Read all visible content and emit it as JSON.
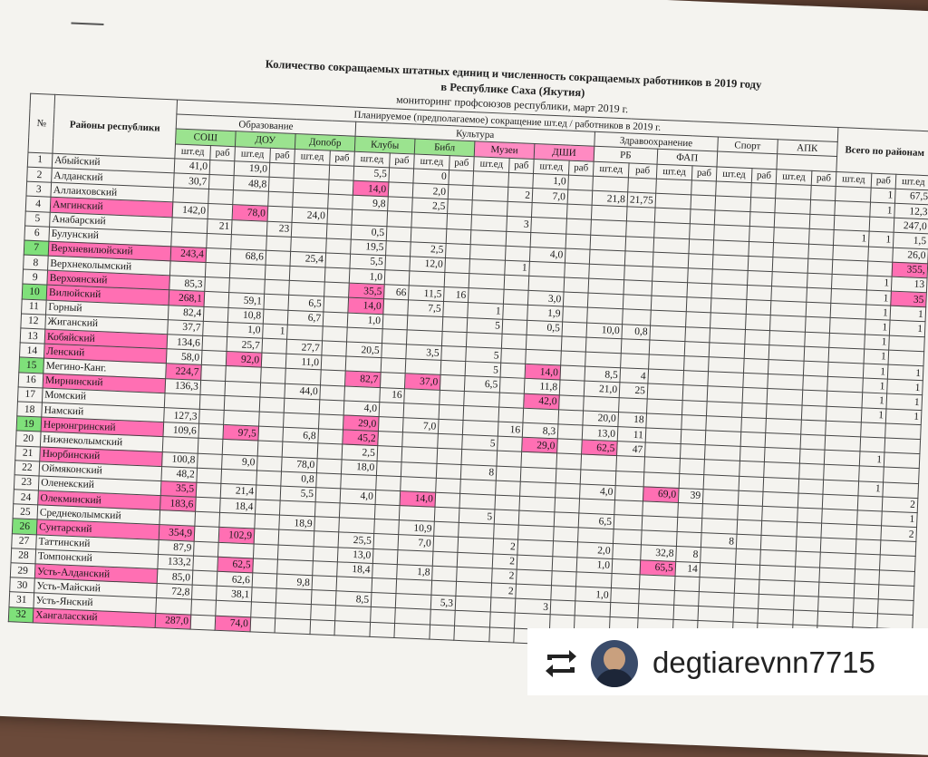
{
  "title_line1": "Количество сокращаемых штатных единиц и численность сокращаемых работников в 2019 году",
  "title_line2": "в Республике Саха (Якутия)",
  "subtitle": "мониторинг профсоюзов республики, март 2019 г.",
  "header": {
    "no": "№",
    "rayon": "Районы республики",
    "planned": "Планируемое (предполагаемое) сокращение шт.ед / работников в 2019 г.",
    "total": "Всего по районам",
    "groups": [
      "Образование",
      "Культура",
      "Здравоохранение",
      "Спорт",
      "АПК"
    ],
    "subgroups": [
      "СОШ",
      "ДОУ",
      "Допобр",
      "Клубы",
      "Библ",
      "Музеи",
      "ДШИ",
      "РБ",
      "ФАП"
    ],
    "unit_a": "шт.ед",
    "unit_b": "раб"
  },
  "rows": [
    {
      "n": "1",
      "name": "Абыйский",
      "c": [
        "41,0",
        "",
        "19,0",
        "",
        "",
        "",
        "5,5",
        "",
        "0",
        "",
        "",
        "",
        "1,0",
        "",
        "",
        "",
        "",
        "",
        "",
        "",
        "",
        "",
        "",
        "1",
        "67,5"
      ]
    },
    {
      "n": "2",
      "name": "Алданский",
      "c": [
        "30,7",
        "",
        "48,8",
        "",
        "",
        "",
        "14,0",
        "",
        "2,0",
        "",
        "",
        "2",
        "7,0",
        "",
        "21,8",
        "21,75",
        "",
        "",
        "",
        "",
        "",
        "",
        "",
        "1",
        "12,3"
      ]
    },
    {
      "n": "3",
      "name": "Аллаиховский",
      "c": [
        "",
        "",
        "",
        "",
        "",
        "",
        "9,8",
        "",
        "2,5",
        "",
        "",
        "",
        "",
        "",
        "",
        "",
        "",
        "",
        "",
        "",
        "",
        "",
        "",
        "",
        "247,0"
      ]
    },
    {
      "n": "4",
      "name": "Амгинский",
      "c": [
        "142,0",
        "",
        "78,0",
        "",
        "24,0",
        "",
        "",
        "",
        "",
        "",
        "",
        "3",
        "",
        "",
        "",
        "",
        "",
        "",
        "",
        "",
        "",
        "",
        "1",
        "1",
        "1,5"
      ]
    },
    {
      "n": "5",
      "name": "Анабарский",
      "c": [
        "",
        "21",
        "",
        "23",
        "",
        "",
        "0,5",
        "",
        "",
        "",
        "",
        "",
        "",
        "",
        "",
        "",
        "",
        "",
        "",
        "",
        "",
        "",
        "",
        "",
        "26,0"
      ]
    },
    {
      "n": "6",
      "name": "Булунский",
      "c": [
        "",
        "",
        "",
        "",
        "",
        "",
        "19,5",
        "",
        "2,5",
        "",
        "",
        "",
        "4,0",
        "",
        "",
        "",
        "",
        "",
        "",
        "",
        "",
        "",
        "",
        "",
        "355,"
      ]
    },
    {
      "n": "7",
      "name": "Верхневилюйский",
      "c": [
        "243,4",
        "",
        "68,6",
        "",
        "25,4",
        "",
        "5,5",
        "",
        "12,0",
        "",
        "",
        "1",
        "",
        "",
        "",
        "",
        "",
        "",
        "",
        "",
        "",
        "",
        "",
        "1",
        "13"
      ]
    },
    {
      "n": "8",
      "name": "Верхнеколымский",
      "c": [
        "",
        "",
        "",
        "",
        "",
        "",
        "1,0",
        "",
        "",
        "",
        "",
        "",
        "",
        "",
        "",
        "",
        "",
        "",
        "",
        "",
        "",
        "",
        "",
        "1",
        "35"
      ]
    },
    {
      "n": "9",
      "name": "Верхоянский",
      "c": [
        "85,3",
        "",
        "",
        "",
        "",
        "",
        "35,5",
        "66",
        "11,5",
        "16",
        "",
        "",
        "3,0",
        "",
        "",
        "",
        "",
        "",
        "",
        "",
        "",
        "",
        "",
        "1",
        "1"
      ]
    },
    {
      "n": "10",
      "name": "Вилюйский",
      "c": [
        "268,1",
        "",
        "59,1",
        "",
        "6,5",
        "",
        "14,0",
        "",
        "7,5",
        "",
        "1",
        "",
        "1,9",
        "",
        "",
        "",
        "",
        "",
        "",
        "",
        "",
        "",
        "",
        "1",
        "1"
      ]
    },
    {
      "n": "11",
      "name": "Горный",
      "c": [
        "82,4",
        "",
        "10,8",
        "",
        "6,7",
        "",
        "1,0",
        "",
        "",
        "",
        "5",
        "",
        "0,5",
        "",
        "10,0",
        "0,8",
        "",
        "",
        "",
        "",
        "",
        "",
        "",
        "1",
        ""
      ]
    },
    {
      "n": "12",
      "name": "Жиганский",
      "c": [
        "37,7",
        "",
        "1,0",
        "1",
        "",
        "",
        "",
        "",
        "",
        "",
        "",
        "",
        "",
        "",
        "",
        "",
        "",
        "",
        "",
        "",
        "",
        "",
        "",
        "1",
        ""
      ]
    },
    {
      "n": "13",
      "name": "Кобяйский",
      "c": [
        "134,6",
        "",
        "25,7",
        "",
        "27,7",
        "",
        "20,5",
        "",
        "3,5",
        "",
        "5",
        "",
        "",
        "",
        "",
        "",
        "",
        "",
        "",
        "",
        "",
        "",
        "",
        "1",
        "1"
      ]
    },
    {
      "n": "14",
      "name": "Ленский",
      "c": [
        "58,0",
        "",
        "92,0",
        "",
        "11,0",
        "",
        "",
        "",
        "",
        "",
        "5",
        "",
        "14,0",
        "",
        "8,5",
        "4",
        "",
        "",
        "",
        "",
        "",
        "",
        "",
        "1",
        "1"
      ]
    },
    {
      "n": "15",
      "name": "Мегино-Канг.",
      "c": [
        "224,7",
        "",
        "",
        "",
        "",
        "",
        "82,7",
        "",
        "37,0",
        "",
        "6,5",
        "",
        "11,8",
        "",
        "21,0",
        "25",
        "",
        "",
        "",
        "",
        "",
        "",
        "",
        "1",
        "1"
      ]
    },
    {
      "n": "16",
      "name": "Мирнинский",
      "c": [
        "136,3",
        "",
        "",
        "",
        "44,0",
        "",
        "",
        "16",
        "",
        "",
        "",
        "",
        "42,0",
        "",
        "",
        "",
        "",
        "",
        "",
        "",
        "",
        "",
        "",
        "1",
        "1"
      ]
    },
    {
      "n": "17",
      "name": "Момский",
      "c": [
        "",
        "",
        "",
        "",
        "",
        "",
        "4,0",
        "",
        "",
        "",
        "",
        "",
        "",
        "",
        "20,0",
        "18",
        "",
        "",
        "",
        "",
        "",
        "",
        "",
        "",
        ""
      ]
    },
    {
      "n": "18",
      "name": "Намский",
      "c": [
        "127,3",
        "",
        "",
        "",
        "",
        "",
        "29,0",
        "",
        "7,0",
        "",
        "",
        "16",
        "8,3",
        "",
        "13,0",
        "11",
        "",
        "",
        "",
        "",
        "",
        "",
        "",
        "",
        ""
      ]
    },
    {
      "n": "19",
      "name": "Нерюнгринский",
      "c": [
        "109,6",
        "",
        "97,5",
        "",
        "6,8",
        "",
        "45,2",
        "",
        "",
        "",
        "5",
        "",
        "29,0",
        "",
        "62,5",
        "47",
        "",
        "",
        "",
        "",
        "",
        "",
        "",
        "1",
        ""
      ]
    },
    {
      "n": "20",
      "name": "Нижнеколымский",
      "c": [
        "",
        "",
        "",
        "",
        "",
        "",
        "2,5",
        "",
        "",
        "",
        "",
        "",
        "",
        "",
        "",
        "",
        "",
        "",
        "",
        "",
        "",
        "",
        "",
        "",
        ""
      ]
    },
    {
      "n": "21",
      "name": "Нюрбинский",
      "c": [
        "100,8",
        "",
        "9,0",
        "",
        "78,0",
        "",
        "18,0",
        "",
        "",
        "",
        "8",
        "",
        "",
        "",
        "",
        "",
        "",
        "",
        "",
        "",
        "",
        "",
        "",
        "1",
        ""
      ]
    },
    {
      "n": "22",
      "name": "Оймяконский",
      "c": [
        "48,2",
        "",
        "",
        "",
        "0,8",
        "",
        "",
        "",
        "",
        "",
        "",
        "",
        "",
        "",
        "4,0",
        "",
        "69,0",
        "39",
        "",
        "",
        "",
        "",
        "",
        "",
        "2"
      ]
    },
    {
      "n": "23",
      "name": "Оленекский",
      "c": [
        "35,5",
        "",
        "21,4",
        "",
        "5,5",
        "",
        "4,0",
        "",
        "14,0",
        "",
        "",
        "",
        "",
        "",
        "",
        "",
        "",
        "",
        "",
        "",
        "",
        "",
        "",
        "",
        "1"
      ]
    },
    {
      "n": "24",
      "name": "Олекминский",
      "c": [
        "183,6",
        "",
        "18,4",
        "",
        "",
        "",
        "",
        "",
        "",
        "",
        "5",
        "",
        "",
        "",
        "6,5",
        "",
        "",
        "",
        "",
        "",
        "",
        "",
        "",
        "",
        "2"
      ]
    },
    {
      "n": "25",
      "name": "Среднеколымский",
      "c": [
        "",
        "",
        "",
        "",
        "18,9",
        "",
        "",
        "",
        "10,9",
        "",
        "",
        "",
        "",
        "",
        "",
        "",
        "",
        "",
        "8",
        "",
        "",
        "",
        "",
        "",
        ""
      ]
    },
    {
      "n": "26",
      "name": "Сунтарский",
      "c": [
        "354,9",
        "",
        "102,9",
        "",
        "",
        "",
        "25,5",
        "",
        "7,0",
        "",
        "",
        "2",
        "",
        "",
        "2,0",
        "",
        "32,8",
        "8",
        "",
        "",
        "",
        "",
        "",
        "",
        ""
      ]
    },
    {
      "n": "27",
      "name": "Таттинский",
      "c": [
        "87,9",
        "",
        "",
        "",
        "",
        "",
        "13,0",
        "",
        "",
        "",
        "",
        "2",
        "",
        "",
        "1,0",
        "",
        "65,5",
        "14",
        "",
        "",
        "",
        "",
        "",
        "",
        ""
      ]
    },
    {
      "n": "28",
      "name": "Томпонский",
      "c": [
        "133,2",
        "",
        "62,5",
        "",
        "",
        "",
        "18,4",
        "",
        "1,8",
        "",
        "",
        "2",
        "",
        "",
        "",
        "",
        "",
        "",
        "",
        "",
        "",
        "",
        "",
        "",
        ""
      ]
    },
    {
      "n": "29",
      "name": "Усть-Алданский",
      "c": [
        "85,0",
        "",
        "62,6",
        "",
        "9,8",
        "",
        "",
        "",
        "",
        "",
        "",
        "2",
        "",
        "",
        "1,0",
        "",
        "",
        "",
        "",
        "",
        "",
        "",
        "",
        "",
        ""
      ]
    },
    {
      "n": "30",
      "name": "Усть-Майский",
      "c": [
        "72,8",
        "",
        "38,1",
        "",
        "",
        "",
        "8,5",
        "",
        "",
        "5,3",
        "",
        "",
        "3",
        "",
        "",
        "",
        "",
        "",
        "",
        "",
        "",
        "",
        "",
        "",
        ""
      ]
    },
    {
      "n": "31",
      "name": "Усть-Янский",
      "c": [
        "",
        "",
        "",
        "",
        "",
        "",
        "",
        "",
        "",
        "",
        "",
        "",
        "",
        "",
        "",
        "",
        "",
        "",
        "",
        "",
        "",
        "",
        "",
        "",
        ""
      ]
    },
    {
      "n": "32",
      "name": "Хангаласский",
      "c": [
        "287,0",
        "",
        "74,0",
        "",
        "",
        "",
        "",
        "",
        "",
        "",
        "",
        "",
        "",
        "",
        "",
        "",
        "",
        "",
        "",
        "",
        "",
        "",
        "",
        "",
        ""
      ]
    }
  ],
  "highlight_pink_names": [
    "4",
    "7",
    "9",
    "10",
    "13",
    "14",
    "16",
    "19",
    "21",
    "24",
    "26",
    "29",
    "32"
  ],
  "highlight_green_nums": [
    "7",
    "10",
    "15",
    "19",
    "26",
    "32"
  ],
  "badge": {
    "handle": "degtiarevnn7715",
    "icon": "repost-icon"
  },
  "colors": {
    "pink": "#ff6fb3",
    "green": "#7fe07a"
  }
}
